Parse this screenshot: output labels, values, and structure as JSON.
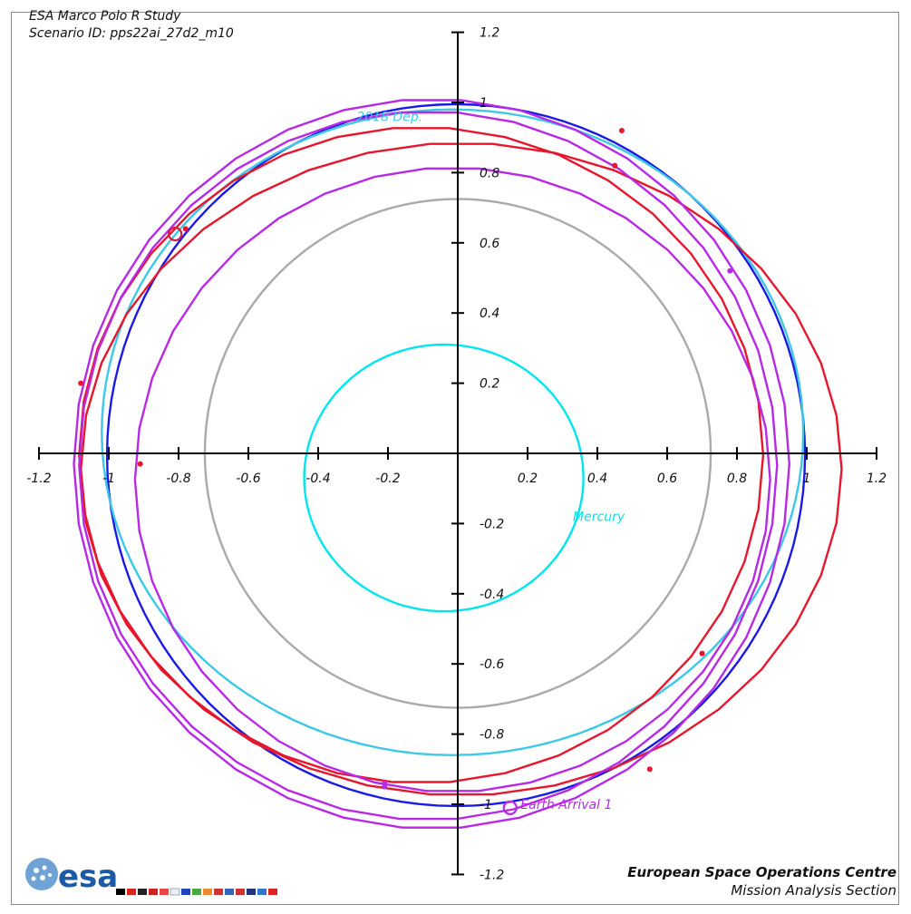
{
  "header": {
    "title": "ESA Marco Polo R Study",
    "scenario": "Scenario ID: pps22ai_27d2_m10"
  },
  "footer": {
    "org": "European Space Operations Centre",
    "section": "Mission Analysis Section",
    "logo_text": "esa"
  },
  "chart_data": {
    "type": "scatter",
    "title": "ESA Marco Polo R Study",
    "subtitle": "Scenario ID: pps22ai_27d2_m10",
    "xlabel": "",
    "ylabel": "",
    "xlim": [
      -1.2,
      1.2
    ],
    "ylim": [
      -1.2,
      1.2
    ],
    "x_ticks": [
      -1.2,
      -1,
      -0.8,
      -0.6,
      -0.4,
      -0.2,
      0.2,
      0.4,
      0.6,
      0.8,
      1,
      1.2
    ],
    "y_ticks": [
      -1.2,
      -1,
      -0.8,
      -0.6,
      -0.4,
      -0.2,
      0.2,
      0.4,
      0.6,
      0.8,
      1,
      1.2
    ],
    "x_tick_labels": [
      "-1.2",
      "-1",
      "-0.8",
      "-0.6",
      "-0.4",
      "-0.2",
      "0.2",
      "0.4",
      "0.6",
      "0.8",
      "1",
      "1.2"
    ],
    "y_tick_labels": [
      "-1.2",
      "-1",
      "-0.8",
      "-0.6",
      "-0.4",
      "-0.2",
      "0.2",
      "0.4",
      "0.6",
      "0.8",
      "1",
      "1.2"
    ],
    "grid": false,
    "series": [
      {
        "name": "Mercury",
        "color": "#00e5ee",
        "shape": "ellipse",
        "cx": -0.04,
        "cy": -0.07,
        "rx": 0.4,
        "ry": 0.38,
        "label_at": [
          0.33,
          -0.18
        ]
      },
      {
        "color": "#aaaaaa",
        "shape": "ellipse",
        "cx": 0.0,
        "cy": 0.0,
        "rx": 0.725,
        "ry": 0.725
      },
      {
        "color": "#1a1ae6",
        "shape": "ellipse",
        "cx": -0.005,
        "cy": -0.005,
        "rx": 1.0,
        "ry": 1.0
      },
      {
        "color": "#3cc8e6",
        "shape": "ellipse",
        "cx": -0.015,
        "cy": 0.06,
        "rx": 1.005,
        "ry": 0.92
      },
      {
        "color": "#e6172d",
        "shape": "ellipse",
        "cx": -0.105,
        "cy": -0.005,
        "rx": 0.98,
        "ry": 0.935
      },
      {
        "color": "#e6172d",
        "shape": "ellipse",
        "cx": 0.01,
        "cy": -0.045,
        "rx": 1.09,
        "ry": 0.93
      },
      {
        "color": "#b829e6",
        "shape": "ellipse",
        "cx": -0.075,
        "cy": -0.03,
        "rx": 1.025,
        "ry": 1.04
      },
      {
        "color": "#b829e6",
        "shape": "ellipse",
        "cx": -0.085,
        "cy": -0.035,
        "rx": 1.0,
        "ry": 1.01
      },
      {
        "color": "#b829e6",
        "shape": "ellipse",
        "cx": -0.015,
        "cy": -0.075,
        "rx": 0.91,
        "ry": 0.89
      }
    ],
    "points": [
      {
        "x": -0.81,
        "y": 0.625,
        "color": "#d0203a",
        "marker": "ring"
      },
      {
        "x": 0.15,
        "y": -1.01,
        "color": "#b829e6",
        "marker": "ring"
      },
      {
        "x": -1.08,
        "y": 0.2,
        "color": "#e6172d",
        "marker": "dot"
      },
      {
        "x": -0.91,
        "y": -0.03,
        "color": "#e6172d",
        "marker": "dot"
      },
      {
        "x": 0.47,
        "y": 0.92,
        "color": "#e6172d",
        "marker": "dot"
      },
      {
        "x": 0.45,
        "y": 0.82,
        "color": "#e6172d",
        "marker": "dot"
      },
      {
        "x": 0.7,
        "y": -0.57,
        "color": "#e6172d",
        "marker": "dot"
      },
      {
        "x": 0.55,
        "y": -0.9,
        "color": "#e6172d",
        "marker": "dot"
      },
      {
        "x": -0.78,
        "y": 0.64,
        "color": "#e6172d",
        "marker": "dot"
      },
      {
        "x": 0.78,
        "y": 0.52,
        "color": "#b829e6",
        "marker": "dot"
      },
      {
        "x": -0.21,
        "y": -0.94,
        "color": "#b829e6",
        "marker": "dot"
      },
      {
        "x": -0.21,
        "y": -0.95,
        "color": "#b829e6",
        "marker": "dot"
      }
    ],
    "annotations": [
      {
        "text": "Earth Arrival 1",
        "x": 0.18,
        "y": -1.0,
        "color": "#b829e6"
      },
      {
        "text": "2018 Dep.",
        "x": -0.29,
        "y": 0.96,
        "color": "#3cc8e6"
      }
    ]
  }
}
